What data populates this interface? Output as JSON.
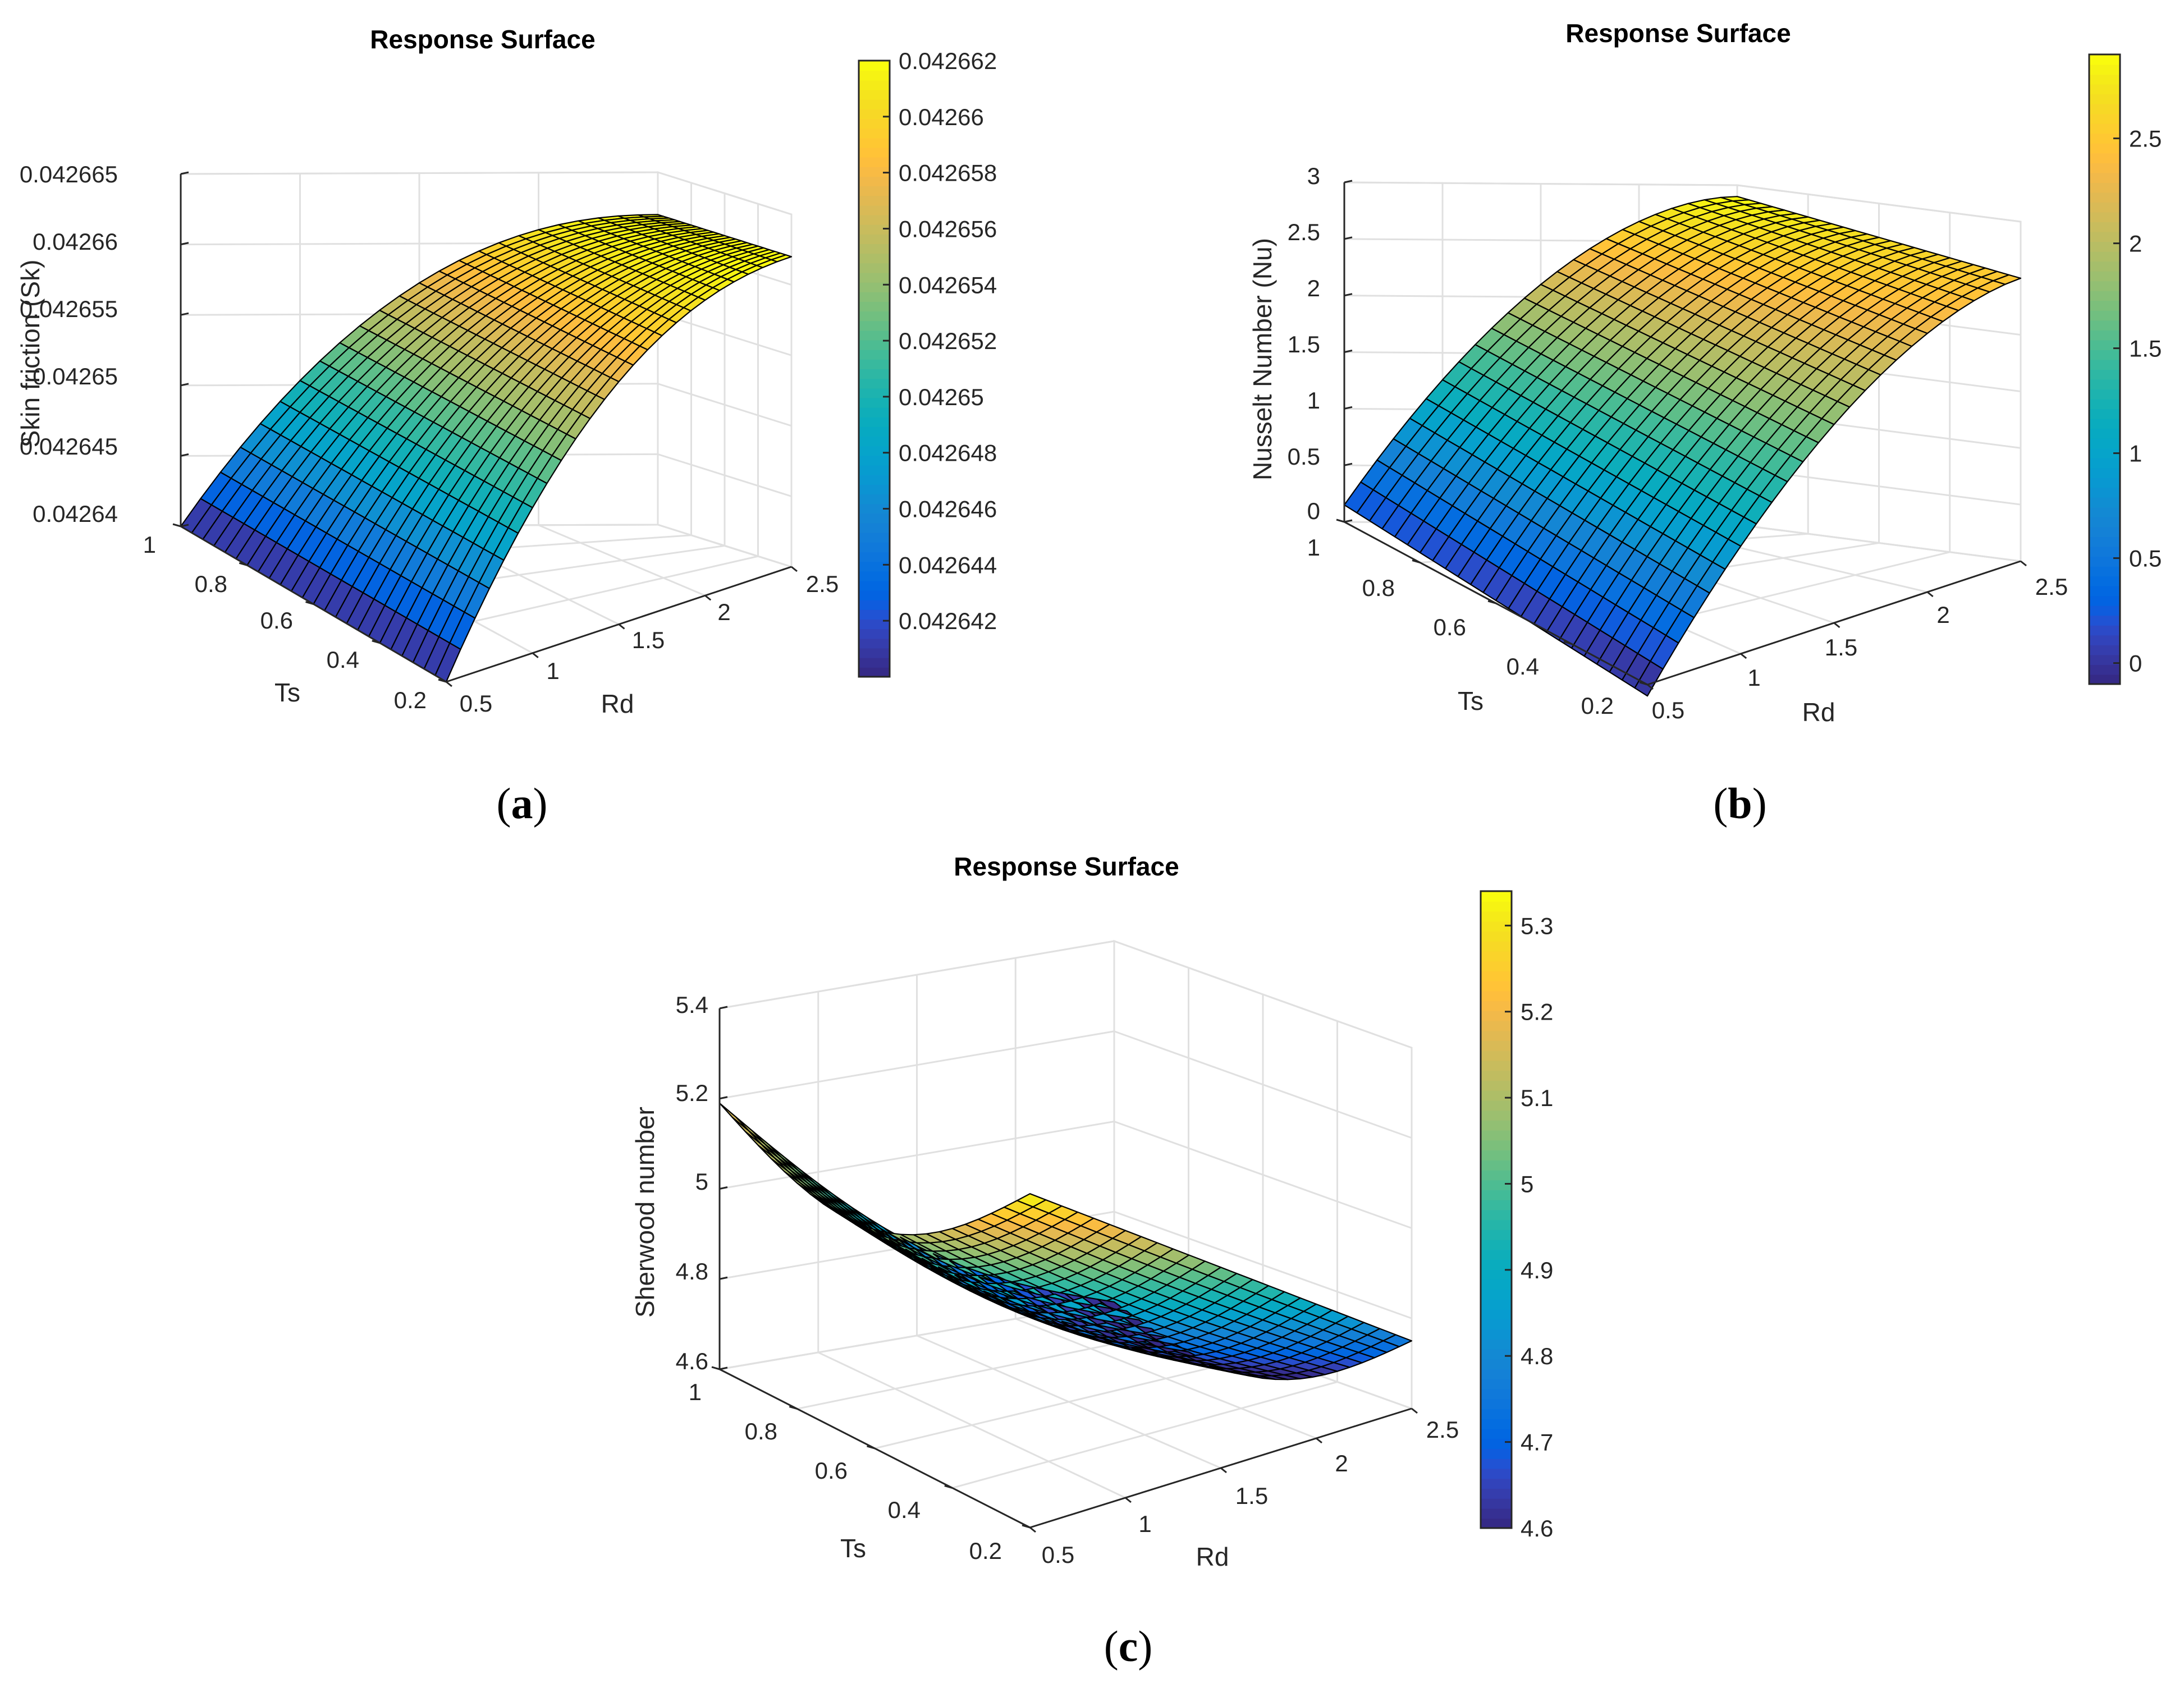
{
  "chart_data": [
    {
      "type": "surface",
      "panel": "a",
      "title": "Response Surface",
      "xlabel": "Rd",
      "ylabel": "Ts",
      "zlabel": "Skin friction (Sk)",
      "xticks": [
        "0.5",
        "1",
        "1.5",
        "2",
        "2.5"
      ],
      "yticks": [
        "0.2",
        "0.4",
        "0.6",
        "0.8",
        "1"
      ],
      "zticks": [
        "0.04264",
        "0.042645",
        "0.04265",
        "0.042655",
        "0.04266",
        "0.042665"
      ],
      "xlim": [
        0.5,
        2.5
      ],
      "ylim": [
        0.2,
        1
      ],
      "zlim": [
        0.04264,
        0.042665
      ],
      "corner_values": {
        "Rd0.5_Ts0.2": 0.04264,
        "Rd0.5_Ts1": 0.04264,
        "Rd2.5_Ts0.2": 0.042662,
        "Rd2.5_Ts1": 0.042662
      },
      "colorbar": {
        "min": 0.04264,
        "max": 0.042662,
        "ticks": [
          "0.042642",
          "0.042644",
          "0.042646",
          "0.042648",
          "0.04265",
          "0.042652",
          "0.042654",
          "0.042656",
          "0.042658",
          "0.04266",
          "0.042662"
        ]
      }
    },
    {
      "type": "surface",
      "panel": "b",
      "title": "Response Surface",
      "xlabel": "Rd",
      "ylabel": "Ts",
      "zlabel": "Nusselt Number (Nu)",
      "xticks": [
        "0.5",
        "1",
        "1.5",
        "2",
        "2.5"
      ],
      "yticks": [
        "0.2",
        "0.4",
        "0.6",
        "0.8",
        "1"
      ],
      "zticks": [
        "0",
        "0.5",
        "1",
        "1.5",
        "2",
        "2.5",
        "3"
      ],
      "xlim": [
        0.5,
        2.5
      ],
      "ylim": [
        0.2,
        1
      ],
      "zlim": [
        0,
        3
      ],
      "corner_values": {
        "Rd0.5_Ts0.2": -0.1,
        "Rd0.5_Ts1": 0.15,
        "Rd2.5_Ts0.2": 2.5,
        "Rd2.5_Ts1": 2.9
      },
      "colorbar": {
        "min": -0.1,
        "max": 2.9,
        "ticks": [
          "0",
          "0.5",
          "1",
          "1.5",
          "2",
          "2.5"
        ]
      }
    },
    {
      "type": "surface",
      "panel": "c",
      "title": "Response Surface",
      "xlabel": "Rd",
      "ylabel": "Ts",
      "zlabel": "Sherwood number",
      "xticks": [
        "0.5",
        "1",
        "1.5",
        "2",
        "2.5"
      ],
      "yticks": [
        "0.2",
        "0.4",
        "0.6",
        "0.8",
        "1"
      ],
      "zticks": [
        "4.6",
        "4.8",
        "5",
        "5.2",
        "5.4"
      ],
      "xlim": [
        0.5,
        2.5
      ],
      "ylim": [
        0.2,
        1
      ],
      "zlim": [
        4.6,
        5.4
      ],
      "corner_values": {
        "Rd0.5_Ts1": 5.19,
        "Rd0.5_Ts0.2": 5.34,
        "Rd2.5_Ts1": 4.6,
        "Rd2.5_Ts0.2": 4.75
      },
      "colorbar": {
        "min": 4.6,
        "max": 5.34,
        "ticks": [
          "4.6",
          "4.7",
          "4.8",
          "4.9",
          "5",
          "5.1",
          "5.2",
          "5.3"
        ]
      }
    }
  ],
  "panel_labels": [
    "a",
    "b",
    "c"
  ],
  "colors": {
    "grid": "#e0e0e0",
    "axis": "#262626",
    "mesh": "#000000"
  }
}
